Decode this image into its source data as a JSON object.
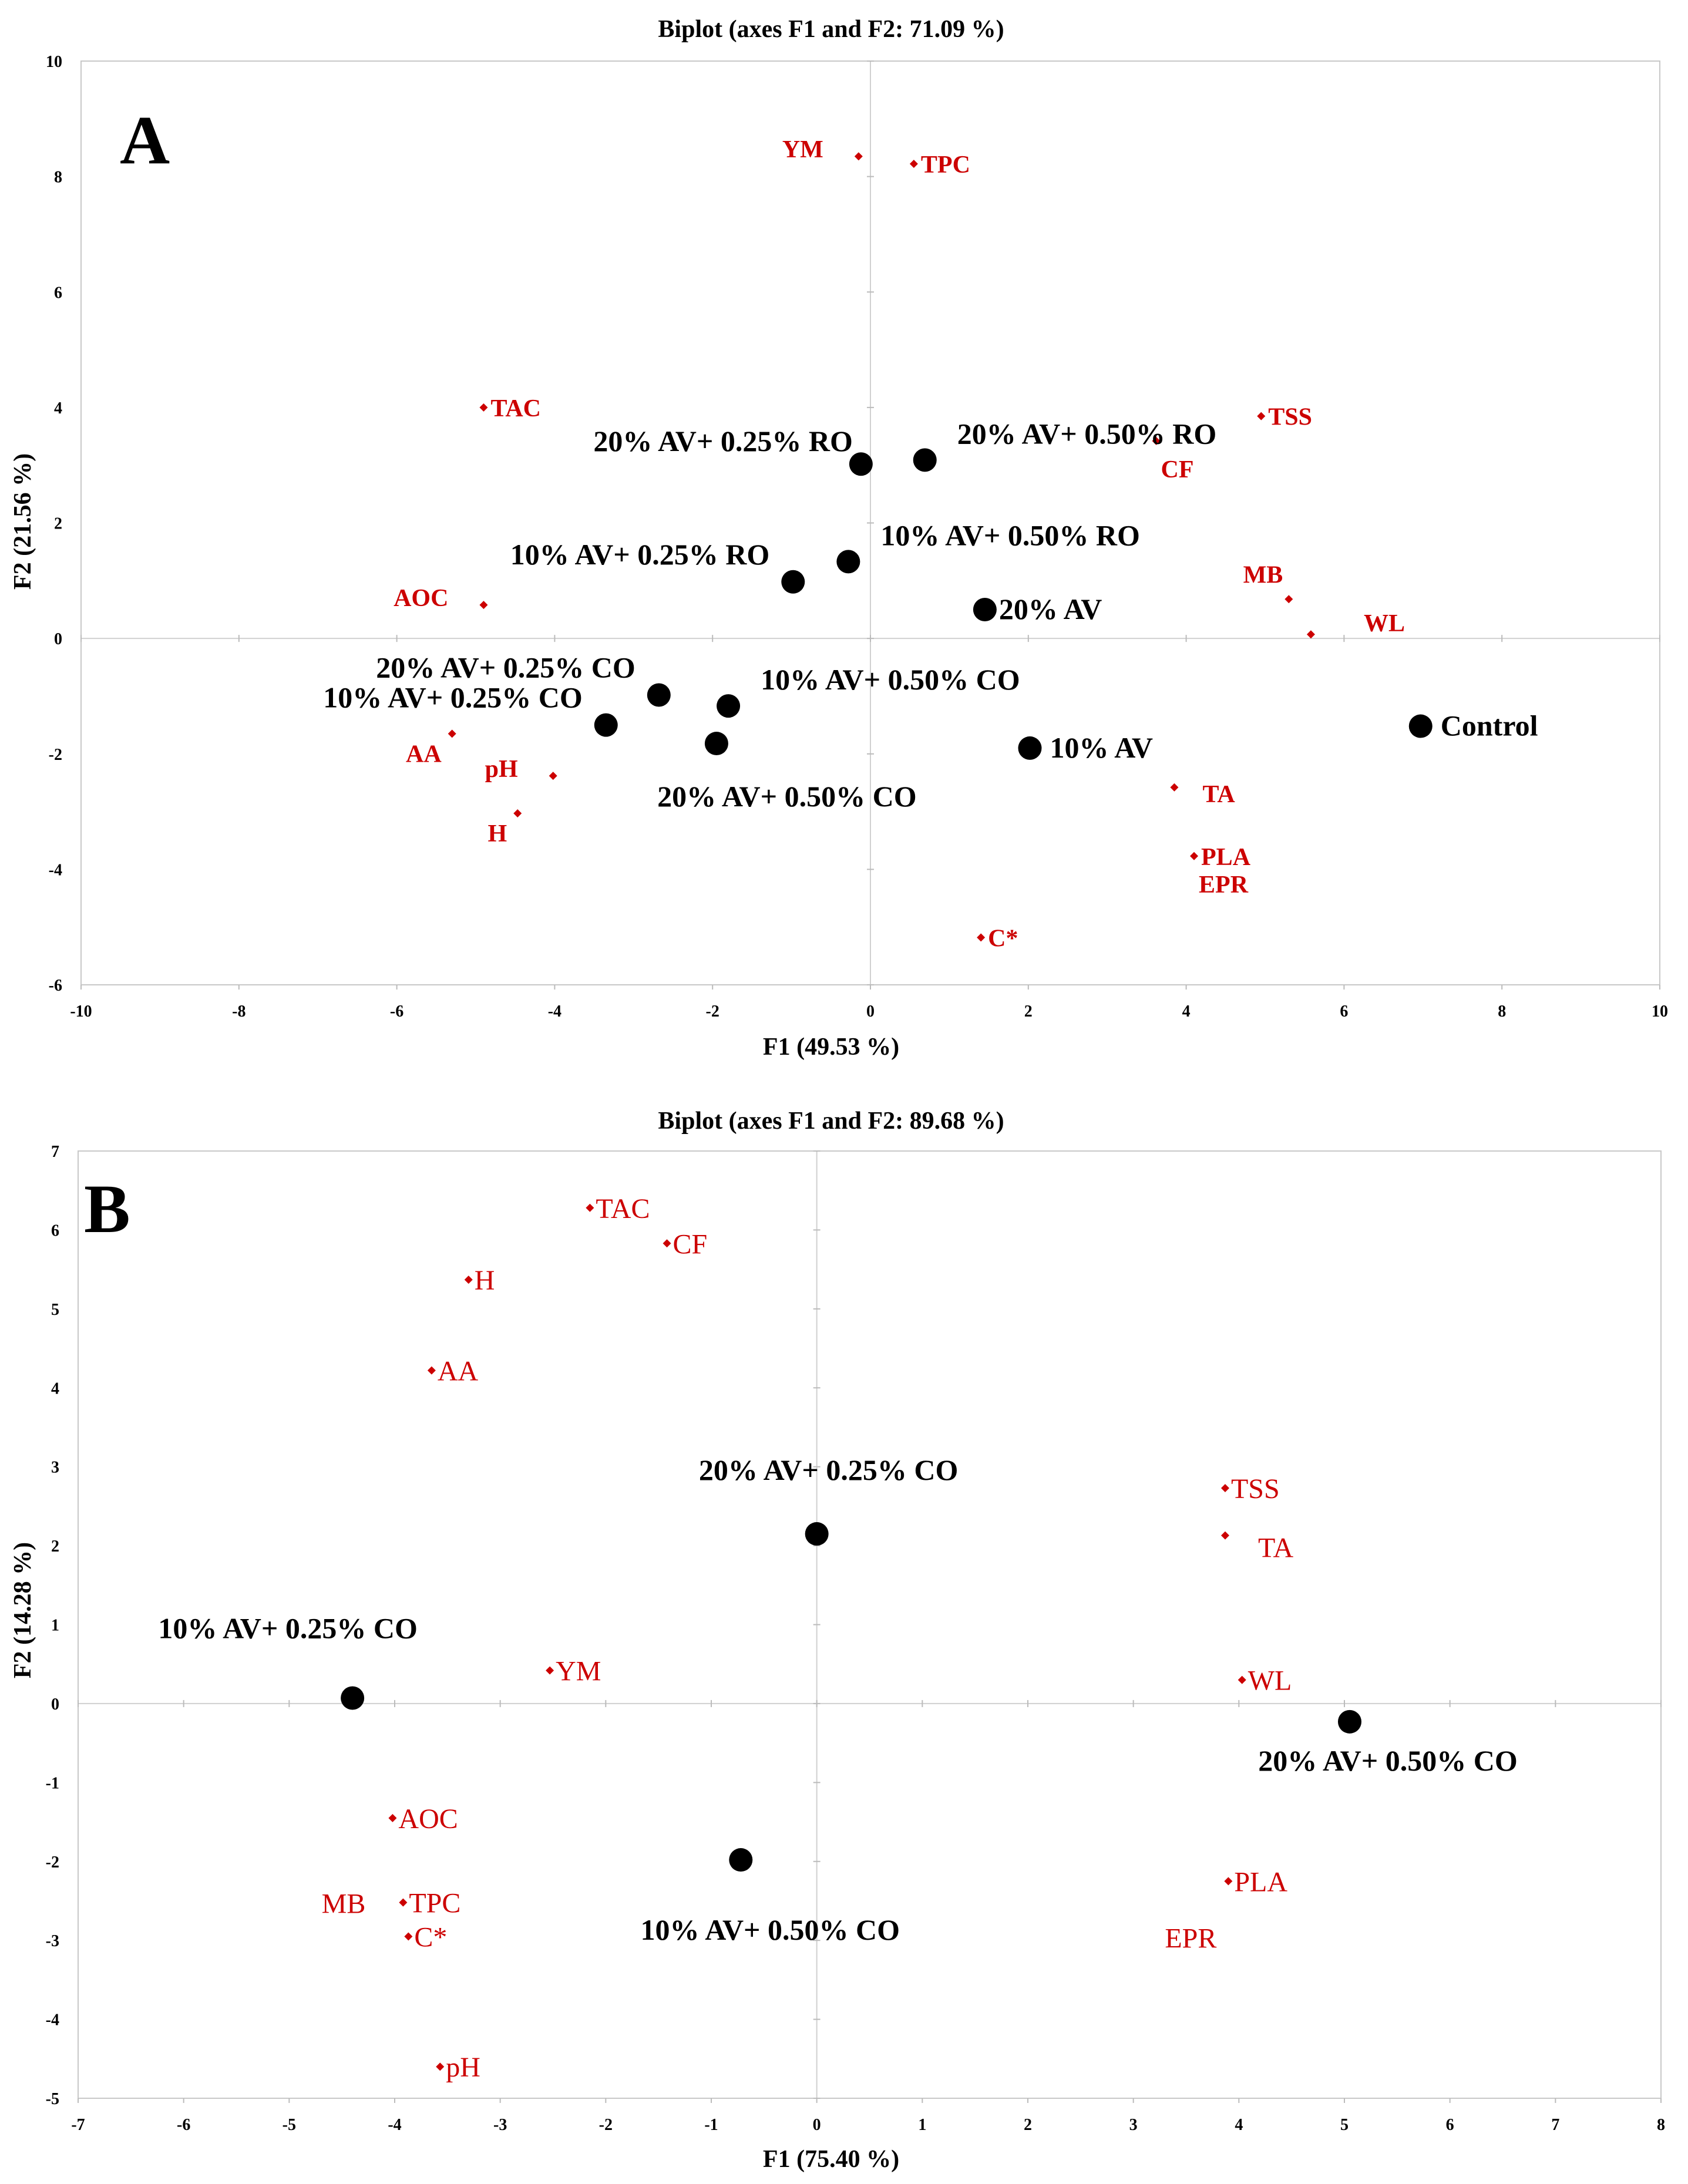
{
  "chart_data": [
    {
      "type": "scatter",
      "panel": "A",
      "title": "Biplot (axes F1 and F2: 71.09 %)",
      "xlabel": "F1 (49.53 %)",
      "ylabel": "F2 (21.56 %)",
      "xlim": [
        -10,
        10
      ],
      "ylim": [
        -6,
        10
      ],
      "xticks": [
        "-10",
        "-8",
        "-6",
        "-4",
        "-2",
        "0",
        "2",
        "4",
        "6",
        "8",
        "10"
      ],
      "yticks": [
        "-6",
        "-4",
        "-2",
        "0",
        "2",
        "4",
        "6",
        "8",
        "10"
      ],
      "colors": {
        "observations": "#000000",
        "variables": "#cc0000"
      },
      "observations": [
        {
          "label": "Control",
          "x": 6.97,
          "y": -1.52,
          "anchor": "right"
        },
        {
          "label": "10% AV",
          "x": 2.02,
          "y": -1.9,
          "anchor": "right"
        },
        {
          "label": "20% AV",
          "x": 1.45,
          "y": 0.5,
          "anchor": "right-tight"
        },
        {
          "label": "10% AV+ 0.50% RO",
          "x": -0.28,
          "y": 1.33,
          "anchor": "upper-right"
        },
        {
          "label": "10% AV+ 0.25% RO",
          "x": -0.98,
          "y": 0.98,
          "anchor": "upper-left"
        },
        {
          "label": "20% AV+ 0.25% RO",
          "x": -0.12,
          "y": 3.02,
          "anchor": "left"
        },
        {
          "label": "20% AV+ 0.50% RO",
          "x": 0.69,
          "y": 3.09,
          "anchor": "upper-right"
        },
        {
          "label": "20% AV+ 0.25% CO",
          "x": -2.68,
          "y": -0.98,
          "anchor": "upper-left"
        },
        {
          "label": "10% AV+ 0.50% CO",
          "x": -1.8,
          "y": -1.17,
          "anchor": "upper-right"
        },
        {
          "label": "10% AV+ 0.25% CO",
          "x": -3.35,
          "y": -1.5,
          "anchor": "upper-left"
        },
        {
          "label": "20% AV+ 0.50% CO",
          "x": -1.95,
          "y": -1.82,
          "anchor": "below"
        }
      ],
      "variables": [
        {
          "label": "YM",
          "x": -0.15,
          "y": 8.35,
          "anchor": "left"
        },
        {
          "label": "TPC",
          "x": 0.55,
          "y": 8.22,
          "anchor": "right"
        },
        {
          "label": "TAC",
          "x": -4.9,
          "y": 4.0,
          "anchor": "right"
        },
        {
          "label": "TSS",
          "x": 4.95,
          "y": 3.85,
          "anchor": "right"
        },
        {
          "label": "CF",
          "x": 3.62,
          "y": 3.42,
          "anchor": "below-right"
        },
        {
          "label": "MB",
          "x": 5.3,
          "y": 0.68,
          "anchor": "upper-left"
        },
        {
          "label": "WL",
          "x": 5.58,
          "y": 0.07,
          "anchor": "upper-right"
        },
        {
          "label": "AOC",
          "x": -4.9,
          "y": 0.58,
          "anchor": "left"
        },
        {
          "label": "AA",
          "x": -5.3,
          "y": -1.65,
          "anchor": "below-left"
        },
        {
          "label": "pH",
          "x": -4.02,
          "y": -2.38,
          "anchor": "left"
        },
        {
          "label": "H",
          "x": -4.47,
          "y": -3.03,
          "anchor": "below-left"
        },
        {
          "label": "TA",
          "x": 3.85,
          "y": -2.58,
          "anchor": "right-big"
        },
        {
          "label": "PLA",
          "x": 4.1,
          "y": -3.77,
          "anchor": "right"
        },
        {
          "label": "EPR",
          "x": 4.1,
          "y": -3.77,
          "anchor": "below-right"
        },
        {
          "label": "C*",
          "x": 1.4,
          "y": -5.18,
          "anchor": "right"
        }
      ]
    },
    {
      "type": "scatter",
      "panel": "B",
      "title": "Biplot (axes F1 and F2: 89.68 %)",
      "xlabel": "F1 (75.40 %)",
      "ylabel": "F2 (14.28 %)",
      "xlim": [
        -7,
        8
      ],
      "ylim": [
        -5,
        7
      ],
      "xticks": [
        "-7",
        "-6",
        "-5",
        "-4",
        "-3",
        "-2",
        "-1",
        "0",
        "1",
        "2",
        "3",
        "4",
        "5",
        "6",
        "7",
        "8"
      ],
      "yticks": [
        "-5",
        "-4",
        "-3",
        "-2",
        "-1",
        "0",
        "1",
        "2",
        "3",
        "4",
        "5",
        "6",
        "7"
      ],
      "colors": {
        "observations": "#000000",
        "variables": "#cc0000"
      },
      "observations": [
        {
          "label": "20% AV+ 0.25% CO",
          "x": 0.0,
          "y": 2.15,
          "anchor": "above"
        },
        {
          "label": "10% AV+ 0.25% CO",
          "x": -4.4,
          "y": 0.07,
          "anchor": "above-left"
        },
        {
          "label": "20% AV+ 0.50% CO",
          "x": 5.05,
          "y": -0.23,
          "anchor": "below-right"
        },
        {
          "label": "10% AV+ 0.50% CO",
          "x": -0.72,
          "y": -1.98,
          "anchor": "below"
        }
      ],
      "variables": [
        {
          "label": "TAC",
          "x": -2.15,
          "y": 6.28,
          "anchor": "right"
        },
        {
          "label": "CF",
          "x": -1.42,
          "y": 5.83,
          "anchor": "right"
        },
        {
          "label": "H",
          "x": -3.3,
          "y": 5.37,
          "anchor": "right"
        },
        {
          "label": "AA",
          "x": -3.65,
          "y": 4.22,
          "anchor": "right"
        },
        {
          "label": "TSS",
          "x": 3.87,
          "y": 2.73,
          "anchor": "right"
        },
        {
          "label": "TA",
          "x": 3.87,
          "y": 2.13,
          "anchor": "right-big"
        },
        {
          "label": "YM",
          "x": -2.53,
          "y": 0.42,
          "anchor": "right"
        },
        {
          "label": "WL",
          "x": 4.03,
          "y": 0.3,
          "anchor": "right"
        },
        {
          "label": "AOC",
          "x": -4.02,
          "y": -1.45,
          "anchor": "right"
        },
        {
          "label": "TPC",
          "x": -3.92,
          "y": -2.52,
          "anchor": "right"
        },
        {
          "label": "MB",
          "x": -3.92,
          "y": -2.52,
          "anchor": "far-left"
        },
        {
          "label": "C*",
          "x": -3.87,
          "y": -2.95,
          "anchor": "right"
        },
        {
          "label": "PLA",
          "x": 3.9,
          "y": -2.25,
          "anchor": "right"
        },
        {
          "label": "EPR",
          "x": 3.9,
          "y": -2.25,
          "anchor": "below-left"
        },
        {
          "label": "pH",
          "x": -3.57,
          "y": -4.6,
          "anchor": "right"
        }
      ]
    }
  ]
}
